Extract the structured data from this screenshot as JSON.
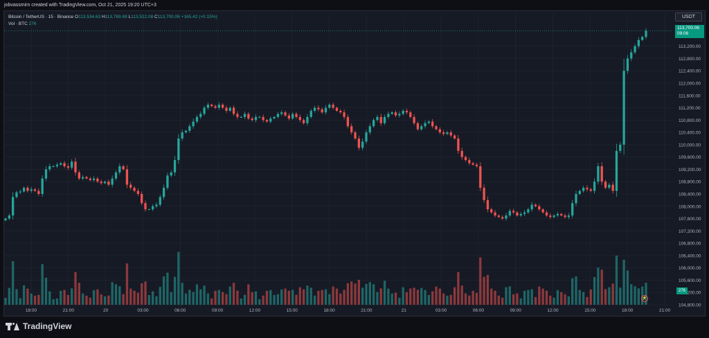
{
  "header": {
    "text": "jobvassmirn created with TradingView.com, Oct 21, 2025 19:20 UTC+3"
  },
  "legend": {
    "symbol": "Bitcoin / TetherUS · 15 · Binance",
    "o_label": "O",
    "o": "113,534.63",
    "h_label": "H",
    "h": "113,769.69",
    "l_label": "L",
    "l": "113,522.08",
    "c_label": "C",
    "c": "113,700.06",
    "change": "+165.42 (+0.15%)",
    "vol_label": "Vol · BTC",
    "vol": "276"
  },
  "currency_button": "USDT",
  "price_tag": {
    "price": "113,700.06",
    "countdown": "09:06"
  },
  "volume_tag": "276",
  "brand": "TradingView",
  "colors": {
    "up": "#26a69a",
    "down": "#ef5350",
    "background": "#161a25",
    "grid": "#232733"
  },
  "chart_data": {
    "type": "candlestick",
    "symbol": "BTCUSDT",
    "interval": "15",
    "y_ticks": [
      "113,200.00",
      "112,800.00",
      "112,400.00",
      "112,000.00",
      "111,600.00",
      "111,200.00",
      "110,800.00",
      "110,400.00",
      "110,000.00",
      "109,600.00",
      "109,200.00",
      "108,800.00",
      "108,400.00",
      "108,000.00",
      "107,600.00",
      "107,200.00",
      "106,800.00",
      "106,400.00",
      "106,000.00",
      "105,600.00",
      "105,200.00",
      "104,800.00"
    ],
    "x_ticks": [
      "18:00",
      "21:00",
      "20",
      "03:00",
      "06:00",
      "09:00",
      "12:00",
      "15:00",
      "18:00",
      "21:00",
      "21",
      "03:00",
      "06:00",
      "09:00",
      "12:00",
      "15:00",
      "18:00",
      "21:00"
    ],
    "ylim": [
      104800,
      113800
    ],
    "close": [
      107600,
      107700,
      108300,
      108450,
      108480,
      108600,
      108500,
      108550,
      108500,
      108400,
      108900,
      109200,
      109300,
      109300,
      109350,
      109400,
      109300,
      109250,
      109450,
      109100,
      108900,
      108950,
      108900,
      108850,
      108900,
      108800,
      108750,
      108800,
      108700,
      108900,
      109100,
      109300,
      109200,
      108700,
      108600,
      108500,
      108400,
      108100,
      107900,
      107900,
      108000,
      108050,
      108300,
      108600,
      109000,
      109100,
      109500,
      110200,
      110400,
      110450,
      110600,
      110750,
      110900,
      111000,
      111200,
      111300,
      111250,
      111200,
      111300,
      111200,
      111100,
      111200,
      111000,
      110900,
      110900,
      111000,
      110850,
      110800,
      110900,
      110900,
      110800,
      110750,
      110850,
      110900,
      111000,
      111050,
      110950,
      110850,
      111000,
      110900,
      110800,
      110700,
      110900,
      111100,
      111200,
      111150,
      111050,
      111200,
      111300,
      111200,
      111100,
      111050,
      110900,
      110600,
      110400,
      110200,
      109900,
      110100,
      110400,
      110600,
      110800,
      110900,
      110700,
      110900,
      111000,
      111050,
      110950,
      111000,
      111100,
      111050,
      110900,
      110700,
      110500,
      110600,
      110700,
      110750,
      110600,
      110500,
      110400,
      110350,
      110400,
      110300,
      110200,
      109800,
      109600,
      109500,
      109400,
      109350,
      109300,
      108600,
      108200,
      107900,
      107800,
      107700,
      107650,
      107600,
      107700,
      107850,
      107800,
      107700,
      107750,
      107800,
      107900,
      108050,
      108000,
      107900,
      107800,
      107700,
      107650,
      107700,
      107750,
      107700,
      107650,
      107700,
      108100,
      108400,
      108500,
      108600,
      108550,
      108500,
      108800,
      109300,
      108800,
      108600,
      108700,
      108500,
      109800,
      110000,
      112400,
      112800,
      113000,
      113200,
      113400,
      113500,
      113700
    ]
  }
}
